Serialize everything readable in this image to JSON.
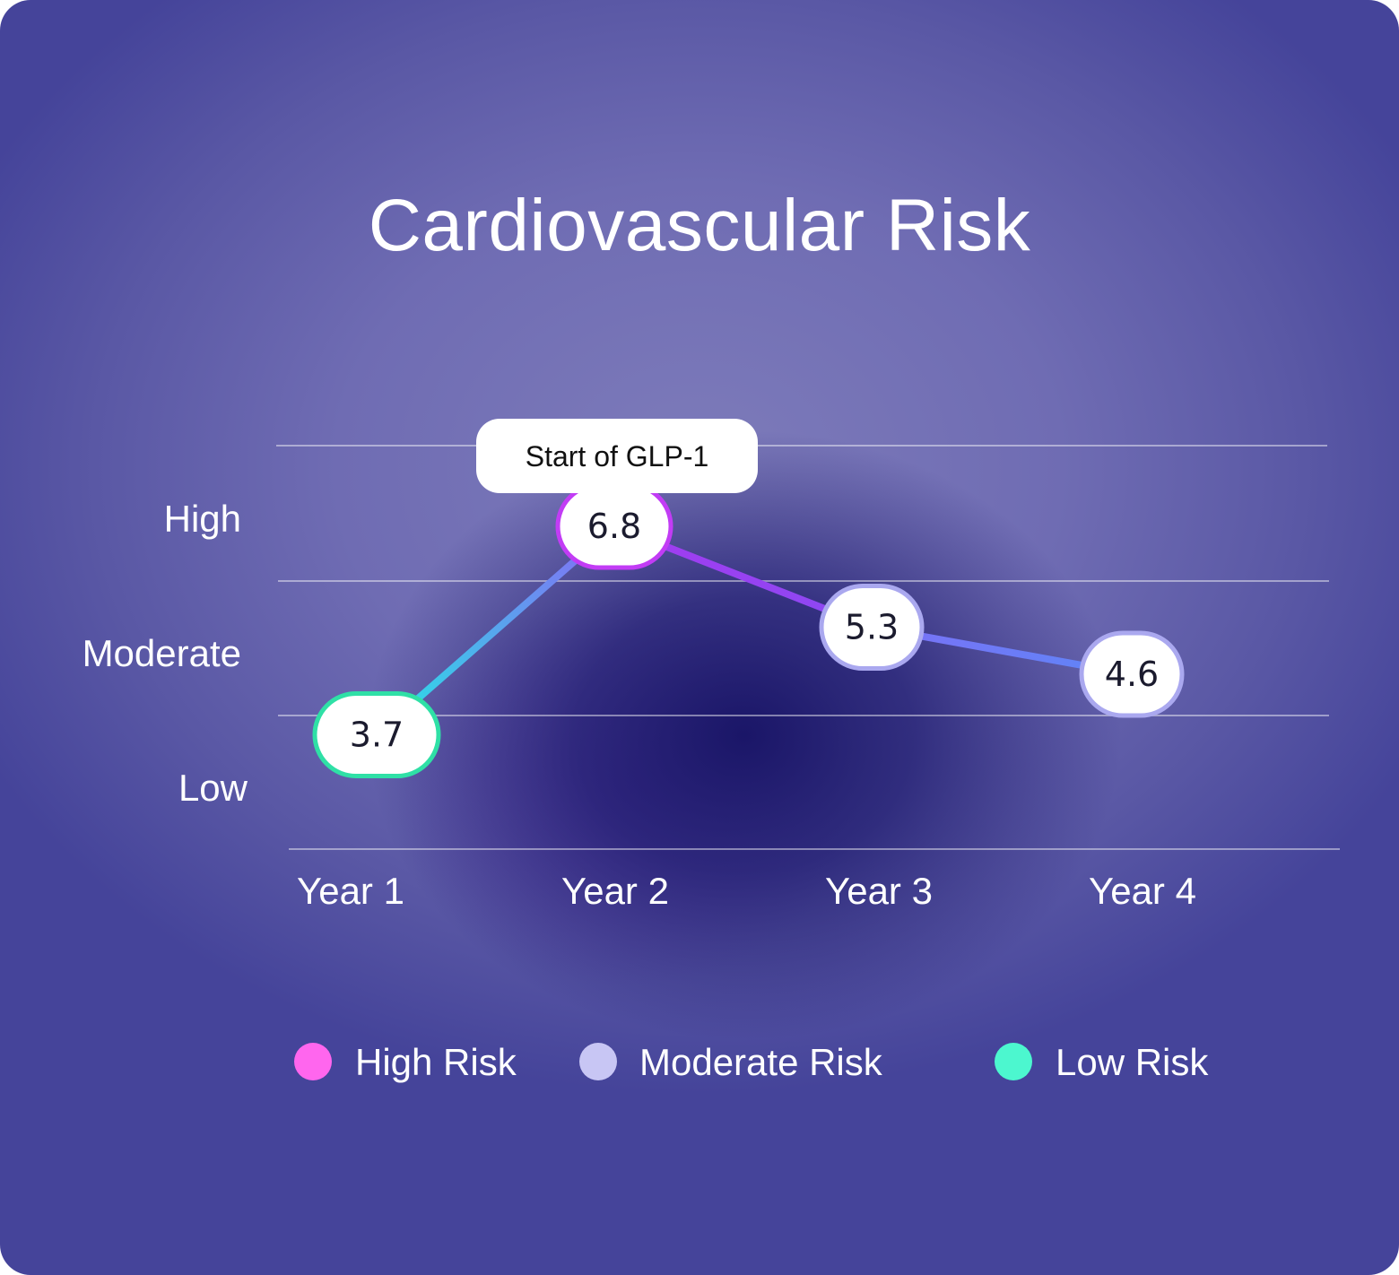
{
  "chart_data": {
    "type": "line",
    "title": "Cardiovascular Risk",
    "categories": [
      "Year 1",
      "Year 2",
      "Year 3",
      "Year 4"
    ],
    "values": [
      3.7,
      6.8,
      5.3,
      4.6
    ],
    "y_bands": [
      "Low",
      "Moderate",
      "High"
    ],
    "ylim": [
      2,
      8
    ],
    "grid": true,
    "annotation": {
      "text": "Start of GLP-1",
      "category": "Year 2"
    },
    "legend": {
      "placement": "bottom",
      "items": [
        {
          "label": "High Risk",
          "color": "#ff66ee"
        },
        {
          "label": "Moderate Risk",
          "color": "#c8c6f4"
        },
        {
          "label": "Low Risk",
          "color": "#4cf7cf"
        }
      ]
    },
    "point_colors": [
      "#2fe0a6",
      "#c23cf5",
      "#aaa8ef",
      "#aaa8ef"
    ],
    "line_colors": {
      "low": "#24e6e6",
      "mid": "#7b6cf6",
      "high": "#a43af0",
      "end": "#5e86f7"
    }
  }
}
